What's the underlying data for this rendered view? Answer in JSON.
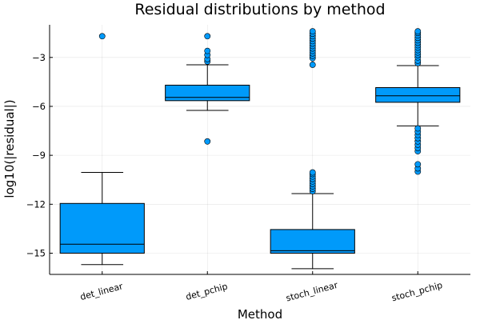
{
  "chart_data": {
    "type": "box",
    "title": "Residual distributions by method",
    "xlabel": "Method",
    "ylabel": "log10(|residual|)",
    "ylim": [
      -16.3,
      -1.0
    ],
    "yticks": [
      -3,
      -6,
      -9,
      -12,
      -15
    ],
    "ytick_labels": [
      "−3",
      "−6",
      "−9",
      "−12",
      "−15"
    ],
    "grid": true,
    "legend": "none",
    "box_color": "#009AFA",
    "categories": [
      "det_linear",
      "det_pchip",
      "stoch_linear",
      "stoch_pchip"
    ],
    "boxes": [
      {
        "category": "det_linear",
        "whisker_low": -15.7,
        "q1": -15.0,
        "median": -14.45,
        "q3": -11.95,
        "whisker_high": -10.05,
        "outliers": [
          -1.7
        ]
      },
      {
        "category": "det_pchip",
        "whisker_low": -6.25,
        "q1": -5.65,
        "median": -5.45,
        "q3": -4.7,
        "whisker_high": -3.45,
        "outliers": [
          -8.15,
          -3.25,
          -3.1,
          -2.85,
          -2.6,
          -1.7
        ]
      },
      {
        "category": "stoch_linear",
        "whisker_low": -15.95,
        "q1": -15.0,
        "median": -14.85,
        "q3": -13.55,
        "whisker_high": -11.35,
        "outliers": [
          -11.2,
          -11.05,
          -10.9,
          -10.75,
          -10.6,
          -10.45,
          -10.3,
          -10.15,
          -10.05,
          -3.45,
          -3.05,
          -2.9,
          -2.75,
          -2.6,
          -2.45,
          -2.3,
          -2.15,
          -2.0,
          -1.85,
          -1.7,
          -1.55,
          -1.4
        ]
      },
      {
        "category": "stoch_pchip",
        "whisker_low": -7.2,
        "q1": -5.75,
        "median": -5.35,
        "q3": -4.85,
        "whisker_high": -3.5,
        "outliers": [
          -10.0,
          -9.8,
          -9.55,
          -8.75,
          -8.55,
          -8.35,
          -8.15,
          -7.95,
          -7.75,
          -7.55,
          -7.35,
          -3.35,
          -3.2,
          -3.0,
          -2.85,
          -2.7,
          -2.55,
          -2.4,
          -2.25,
          -2.1,
          -1.95,
          -1.8,
          -1.65,
          -1.5,
          -1.4
        ]
      }
    ]
  }
}
